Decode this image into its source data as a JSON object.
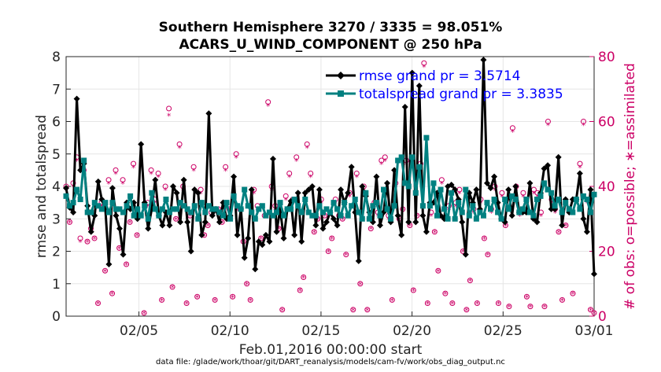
{
  "chart_data": {
    "type": "line",
    "title": "Southern Hemisphere 3270 / 3335 = 98.051%",
    "subtitle": "ACARS_U_WIND_COMPONENT @ 250 hPa",
    "xlabel": "Feb.01,2016 00:00:00 start",
    "ylabel": "rmse and totalspread",
    "ylabel_right": "# of obs: o=possible; ∗=assimilated",
    "footer": "data file: /glade/work/thoar/git/DART_reanalysis/models/cam-fv/work/obs_diag_output.nc",
    "xlim": [
      1,
      30
    ],
    "ylim": [
      0,
      8
    ],
    "ylim_right": [
      0,
      80
    ],
    "xticks": [
      {
        "v": 5,
        "label": "02/05"
      },
      {
        "v": 10,
        "label": "02/10"
      },
      {
        "v": 15,
        "label": "02/15"
      },
      {
        "v": 20,
        "label": "02/20"
      },
      {
        "v": 25,
        "label": "02/25"
      },
      {
        "v": 30,
        "label": "03/01"
      }
    ],
    "yticks": [
      0,
      1,
      2,
      3,
      4,
      5,
      6,
      7,
      8
    ],
    "yticks_right": [
      0,
      20,
      40,
      60,
      80
    ],
    "grid": true,
    "legend_position": "top-right",
    "colors": {
      "rmse": "#000000",
      "spread": "#008080",
      "obs": "#cc0066",
      "legend_text": "#0000ff",
      "grid": "#e6e6e6"
    },
    "series": [
      {
        "name": "rmse",
        "legend": "rmse grand pr = 3.5714",
        "values": [
          3.95,
          3.35,
          3.2,
          6.7,
          4.5,
          4.7,
          3.4,
          2.6,
          3.1,
          4.15,
          3.6,
          3.3,
          1.6,
          3.95,
          3.1,
          2.7,
          1.9,
          3.5,
          3.3,
          3.5,
          3.0,
          5.3,
          3.5,
          2.7,
          3.3,
          4.2,
          3.1,
          2.8,
          3.2,
          2.8,
          4.0,
          3.8,
          2.9,
          4.2,
          2.9,
          2.0,
          3.9,
          3.8,
          2.5,
          2.9,
          6.25,
          3.1,
          3.3,
          2.9,
          3.5,
          3.0,
          3.1,
          4.3,
          2.5,
          3.3,
          1.8,
          2.4,
          3.9,
          1.45,
          2.3,
          2.2,
          2.5,
          2.3,
          4.85,
          2.6,
          3.3,
          2.4,
          3.3,
          3.55,
          2.5,
          3.8,
          2.3,
          3.8,
          3.9,
          4.0,
          2.8,
          3.9,
          2.7,
          2.9,
          3.2,
          3.0,
          2.8,
          3.9,
          3.5,
          3.8,
          4.6,
          3.2,
          1.7,
          4.0,
          3.7,
          3.2,
          2.9,
          4.3,
          2.8,
          3.2,
          4.1,
          2.9,
          4.5,
          3.1,
          2.5,
          6.45,
          2.9,
          7.5,
          2.9,
          7.1,
          3.1,
          2.6,
          3.5,
          3.5,
          3.8,
          3.1,
          3.0,
          4.0,
          4.05,
          3.9,
          3.6,
          2.9,
          1.9,
          3.8,
          3.5,
          3.9,
          3.3,
          7.9,
          4.1,
          3.95,
          4.3,
          3.5,
          3.0,
          2.9,
          3.9,
          3.1,
          4.0,
          3.2,
          3.2,
          3.2,
          4.1,
          3.0,
          2.9,
          3.8,
          4.55,
          4.65,
          3.3,
          3.3,
          4.9,
          2.8,
          3.6,
          3.2,
          3.6,
          3.6,
          4.4,
          3.0,
          2.6,
          3.9,
          1.3
        ],
        "style": "line-diamond"
      },
      {
        "name": "totalspread",
        "legend": "totalspread grand pr = 3.3835",
        "values": [
          3.7,
          3.4,
          3.5,
          3.9,
          3.6,
          4.8,
          3.2,
          3.2,
          3.5,
          3.4,
          3.3,
          3.5,
          3.2,
          3.5,
          3.3,
          3.3,
          3.2,
          3.4,
          3.7,
          3.1,
          3.3,
          3.1,
          3.4,
          3.0,
          3.8,
          3.3,
          3.1,
          3.3,
          3.6,
          3.2,
          3.3,
          3.3,
          3.5,
          3.4,
          3.3,
          3.2,
          3.4,
          3.0,
          3.5,
          3.2,
          3.4,
          3.3,
          3.3,
          3.2,
          3.1,
          3.5,
          3.0,
          3.7,
          3.4,
          3.3,
          3.9,
          3.4,
          3.2,
          3.0,
          3.3,
          3.4,
          3.1,
          3.2,
          3.1,
          3.2,
          3.5,
          3.1,
          3.3,
          3.3,
          3.6,
          3.4,
          3.2,
          3.6,
          3.2,
          3.1,
          3.1,
          3.4,
          3.2,
          3.3,
          3.2,
          3.5,
          3.3,
          3.1,
          3.5,
          3.1,
          3.4,
          3.6,
          3.2,
          3.0,
          3.8,
          3.0,
          3.4,
          3.5,
          3.1,
          3.9,
          3.3,
          3.0,
          3.4,
          4.8,
          4.9,
          4.1,
          4.0,
          4.9,
          3.8,
          4.6,
          3.4,
          5.5,
          3.4,
          4.1,
          3.1,
          3.9,
          3.3,
          3.0,
          3.8,
          3.0,
          3.5,
          3.2,
          3.9,
          3.1,
          3.4,
          3.0,
          3.2,
          3.1,
          3.5,
          3.3,
          3.6,
          3.2,
          3.0,
          3.6,
          3.3,
          3.7,
          3.6,
          3.2,
          3.3,
          3.6,
          3.2,
          3.1,
          3.6,
          3.7,
          4.1,
          3.9,
          3.8,
          3.4,
          3.6,
          3.2,
          3.5,
          3.3,
          3.2,
          3.6,
          3.3,
          3.7,
          3.6,
          3.2,
          3.75
        ],
        "style": "line-square"
      }
    ],
    "obs_possible": [
      40,
      29,
      41,
      49,
      24,
      45,
      23,
      27,
      24,
      4,
      35,
      14,
      42,
      7,
      45,
      21,
      42,
      16,
      29,
      47,
      25,
      31,
      1,
      35,
      45,
      36,
      44,
      5,
      40,
      64,
      9,
      30,
      53,
      40,
      4,
      31,
      46,
      6,
      39,
      25,
      28,
      32,
      5,
      33,
      29,
      46,
      33,
      6,
      50,
      33,
      23,
      10,
      5,
      39,
      34,
      24,
      31,
      66,
      40,
      34,
      27,
      2,
      37,
      44,
      36,
      49,
      8,
      12,
      53,
      44,
      26,
      30,
      36,
      31,
      20,
      24,
      36,
      31,
      30,
      19,
      38,
      2,
      44,
      10,
      40,
      2,
      27,
      35,
      32,
      48,
      49,
      31,
      5,
      41,
      30,
      33,
      48,
      28,
      8,
      31,
      47,
      78,
      4,
      32,
      26,
      14,
      42,
      7,
      34,
      4,
      35,
      39,
      20,
      2,
      11,
      33,
      4,
      36,
      24,
      19,
      33,
      40,
      4,
      38,
      28,
      3,
      58,
      40,
      32,
      38,
      6,
      3,
      39,
      38,
      32,
      3,
      60,
      36,
      33,
      26,
      5,
      28,
      33,
      7,
      36,
      47,
      60,
      36,
      2,
      1
    ],
    "obs_assimilated": [
      39,
      29,
      40,
      48,
      23,
      44,
      23,
      26,
      24,
      4,
      34,
      14,
      41,
      7,
      44,
      21,
      41,
      16,
      29,
      46,
      25,
      31,
      1,
      34,
      44,
      35,
      43,
      5,
      39,
      62,
      9,
      30,
      52,
      39,
      4,
      31,
      45,
      6,
      38,
      25,
      28,
      31,
      5,
      33,
      29,
      45,
      33,
      6,
      49,
      33,
      23,
      10,
      5,
      38,
      33,
      24,
      31,
      65,
      39,
      33,
      27,
      2,
      36,
      43,
      35,
      48,
      8,
      12,
      52,
      43,
      26,
      30,
      35,
      31,
      20,
      24,
      35,
      31,
      30,
      19,
      37,
      2,
      43,
      10,
      39,
      2,
      27,
      34,
      31,
      47,
      48,
      30,
      5,
      40,
      30,
      33,
      47,
      28,
      8,
      31,
      46,
      77,
      4,
      31,
      26,
      14,
      41,
      7,
      33,
      4,
      34,
      38,
      20,
      2,
      11,
      32,
      4,
      35,
      24,
      19,
      32,
      39,
      4,
      37,
      28,
      3,
      57,
      39,
      31,
      37,
      6,
      3,
      38,
      37,
      31,
      3,
      59,
      35,
      32,
      26,
      5,
      28,
      32,
      7,
      35,
      46,
      59,
      35,
      2,
      1
    ]
  }
}
